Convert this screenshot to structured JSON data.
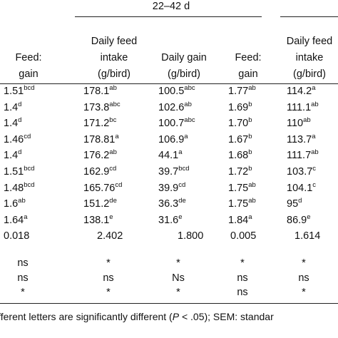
{
  "header": {
    "group": "22–42 d",
    "columns": [
      [
        "Feed:",
        "gain"
      ],
      [
        "Daily feed",
        "intake",
        "(g/bird)"
      ],
      [
        "Daily gain",
        "(g/bird)"
      ],
      [
        "Feed:",
        "gain"
      ],
      [
        "Daily feed",
        "intake",
        "(g/bird)"
      ]
    ]
  },
  "rows": [
    [
      {
        "v": "1.51",
        "sup": "bcd"
      },
      {
        "v": "178.1",
        "sup": "ab"
      },
      {
        "v": "100.5",
        "sup": "abc"
      },
      {
        "v": "1.77",
        "sup": "ab"
      },
      {
        "v": "114.2",
        "sup": "a"
      }
    ],
    [
      {
        "v": "1.4",
        "sup": "d"
      },
      {
        "v": "173.8",
        "sup": "abc"
      },
      {
        "v": "102.6",
        "sup": "ab"
      },
      {
        "v": "1.69",
        "sup": "b"
      },
      {
        "v": "111.1",
        "sup": "ab"
      }
    ],
    [
      {
        "v": "1.4",
        "sup": "d"
      },
      {
        "v": "171.2",
        "sup": "bc"
      },
      {
        "v": "100.7",
        "sup": "abc"
      },
      {
        "v": "1.70",
        "sup": "b"
      },
      {
        "v": "110",
        "sup": "ab"
      }
    ],
    [
      {
        "v": "1.46",
        "sup": "cd"
      },
      {
        "v": "178.81",
        "sup": "a"
      },
      {
        "v": "106.9",
        "sup": "a"
      },
      {
        "v": "1.67",
        "sup": "b"
      },
      {
        "v": "113.7",
        "sup": "a"
      }
    ],
    [
      {
        "v": "1.4",
        "sup": "d"
      },
      {
        "v": "176.2",
        "sup": "ab"
      },
      {
        "v": "44.1",
        "sup": "a"
      },
      {
        "v": "1.68",
        "sup": "b"
      },
      {
        "v": "111.7",
        "sup": "ab"
      }
    ],
    [
      {
        "v": "1.51",
        "sup": "bcd"
      },
      {
        "v": "162.9",
        "sup": "cd"
      },
      {
        "v": "39.7",
        "sup": "bcd"
      },
      {
        "v": "1.72",
        "sup": "b"
      },
      {
        "v": "103.7",
        "sup": "c"
      }
    ],
    [
      {
        "v": "1.48",
        "sup": "bcd"
      },
      {
        "v": "165.76",
        "sup": "cd"
      },
      {
        "v": "39.9",
        "sup": "cd"
      },
      {
        "v": "1.75",
        "sup": "ab"
      },
      {
        "v": "104.1",
        "sup": "c"
      }
    ],
    [
      {
        "v": "1.6",
        "sup": "ab"
      },
      {
        "v": "151.2",
        "sup": "de"
      },
      {
        "v": "36.3",
        "sup": "de"
      },
      {
        "v": "1.75",
        "sup": "ab"
      },
      {
        "v": "95",
        "sup": "d"
      }
    ],
    [
      {
        "v": "1.64",
        "sup": "a"
      },
      {
        "v": "138.1",
        "sup": "e"
      },
      {
        "v": "31.6",
        "sup": "e"
      },
      {
        "v": "1.84",
        "sup": "a"
      },
      {
        "v": "86.9",
        "sup": "e"
      }
    ]
  ],
  "sem": [
    "0.018",
    "2.402",
    "1.800",
    "0.005",
    "1.614"
  ],
  "stats": [
    [
      "ns",
      "*",
      "*",
      "*",
      "*"
    ],
    [
      "ns",
      "ns",
      "Ns",
      "ns",
      "ns"
    ],
    [
      "*",
      "*",
      "*",
      "ns",
      "*"
    ]
  ],
  "footnote": [
    "ifferent letters are significantly different (",
    "P",
    " < .05); SEM: standar"
  ]
}
